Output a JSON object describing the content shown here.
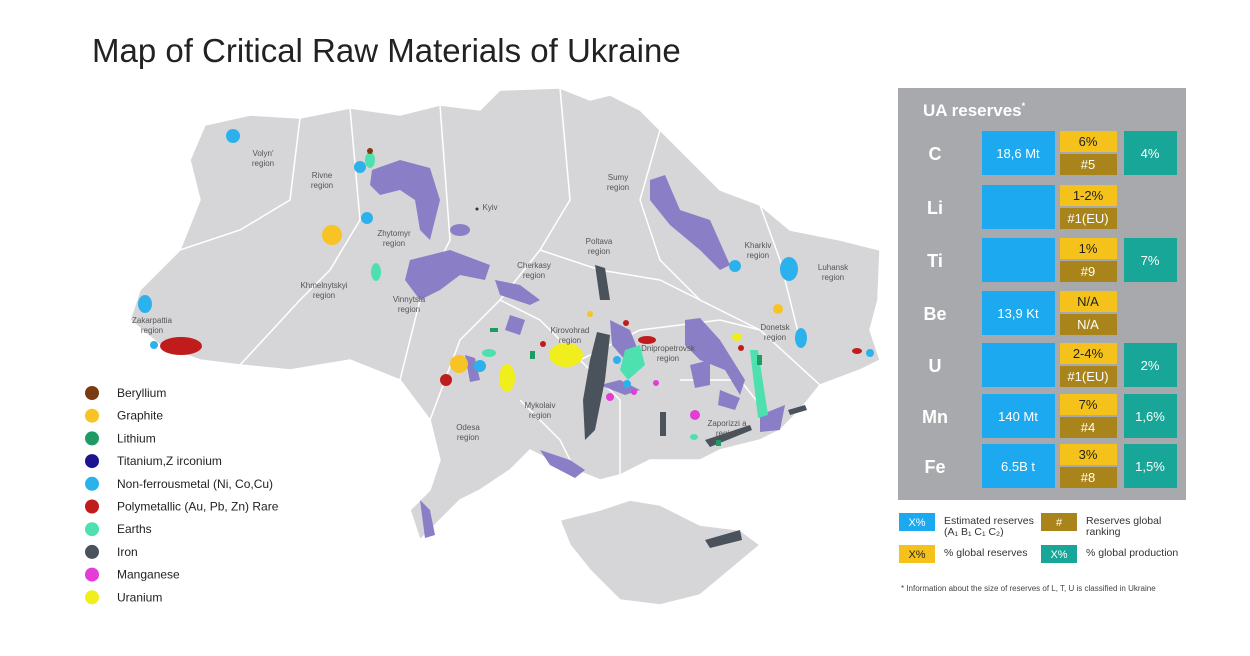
{
  "title": "Map of Critical Raw Materials of Ukraine",
  "regions": [
    "Volyn' region",
    "Rivne region",
    "Zhytomyr region",
    "Kyiv",
    "Sumy region",
    "Poltava region",
    "Kharkiv region",
    "Luhansk region",
    "Cherkasy region",
    "Khmelnytskyi region",
    "Vinnytsia region",
    "Zakarpattia region",
    "Kirovohrad region",
    "Dnipropetrovsk region",
    "Donetsk region",
    "Zaporizzi a region",
    "Mykolaiv region",
    "Odesa region"
  ],
  "legend": [
    {
      "label": "Beryllium",
      "color": "#7a3b10"
    },
    {
      "label": "Graphite",
      "color": "#f7c325"
    },
    {
      "label": "Lithium",
      "color": "#1f9a63"
    },
    {
      "label": "Titanium,Z irconium",
      "color": "#1c1490"
    },
    {
      "label": "Non-ferrousmetal (Ni, Co,Cu)",
      "color": "#2bb2ec"
    },
    {
      "label": "Polymetallic (Au, Pb, Zn) Rare",
      "color": "#c01c1c"
    },
    {
      "label": "Earths",
      "color": "#4fe0b0"
    },
    {
      "label": "Iron",
      "color": "#4a525c"
    },
    {
      "label": "Manganese",
      "color": "#e43cd6"
    },
    {
      "label": "Uranium",
      "color": "#f0ee1c"
    }
  ],
  "reserves": {
    "title": "UA reserves",
    "title_mark": "*",
    "rows": [
      {
        "element": "C",
        "estimated": "18,6 Mt",
        "share": "6%",
        "rank": "#5",
        "production": "4%"
      },
      {
        "element": "Li",
        "estimated": null,
        "share": "1-2%",
        "rank": "#1(EU)",
        "production": null
      },
      {
        "element": "Ti",
        "estimated": null,
        "share": "1%",
        "rank": "#9",
        "production": "7%"
      },
      {
        "element": "Be",
        "estimated": "13,9 Kt",
        "share": "N/A",
        "rank": "N/A",
        "production": null
      },
      {
        "element": "U",
        "estimated": null,
        "share": "2-4%",
        "rank": "#1(EU)",
        "production": "2%"
      },
      {
        "element": "Mn",
        "estimated": "140 Mt",
        "share": "7%",
        "rank": "#4",
        "production": "1,6%"
      },
      {
        "element": "Fe",
        "estimated": "6.5B t",
        "share": "3%",
        "rank": "#8",
        "production": "1,5%"
      }
    ]
  },
  "key": [
    {
      "swatch": "X%",
      "label": "Estimated reserves (A₁ B₁ C₁ C₂)"
    },
    {
      "swatch": "#",
      "label": "Reserves global ranking"
    },
    {
      "swatch": "X%",
      "label": "% global reserves"
    },
    {
      "swatch": "X%",
      "label": "% global production"
    }
  ],
  "footnote": "* Information about the size of reserves of L, T, U is classified in Ukraine"
}
